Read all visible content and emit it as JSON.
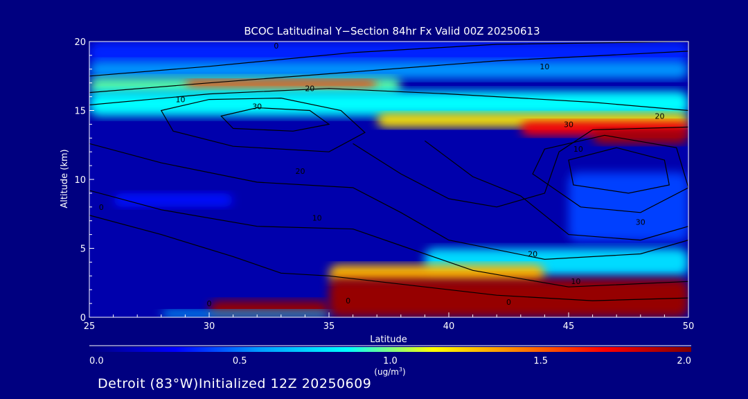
{
  "chart_data": {
    "type": "heatmap",
    "title": "BCOC Latitudinal Y−Section 84hr  Fx Valid 00Z 20250613",
    "xlabel": "Latitude",
    "ylabel": "Altitude (km)",
    "xlim": [
      25,
      50
    ],
    "ylim": [
      0,
      20
    ],
    "x_ticks": [
      25,
      30,
      35,
      40,
      45,
      50
    ],
    "y_ticks": [
      0,
      5,
      10,
      15,
      20
    ],
    "colorbar": {
      "min": 0.0,
      "max": 2.0,
      "tick_values": [
        0.0,
        0.5,
        1.0,
        1.5,
        2.0
      ],
      "tick_labels": [
        "0.0",
        "0.5",
        "1.0",
        "1.5",
        "2.0"
      ],
      "unit": "(ug/m",
      "unit_sup": "3",
      "unit_close": ")",
      "colormap": [
        "#000080",
        "#0000ff",
        "#00a0ff",
        "#00ffff",
        "#ffff00",
        "#ff8000",
        "#ff0000",
        "#800000"
      ]
    },
    "concentration_regions": [
      {
        "x": [
          25,
          50
        ],
        "y": [
          0,
          20
        ],
        "value": 0.1
      },
      {
        "x": [
          25,
          50
        ],
        "y": [
          18.3,
          20
        ],
        "value": 0.35
      },
      {
        "x": [
          25,
          50
        ],
        "y": [
          17.3,
          18.6
        ],
        "value": 0.55
      },
      {
        "x": [
          25,
          38
        ],
        "y": [
          16.2,
          17.4
        ],
        "value": 0.95
      },
      {
        "x": [
          29,
          37
        ],
        "y": [
          16.6,
          17.2
        ],
        "value": 1.6
      },
      {
        "x": [
          25,
          50
        ],
        "y": [
          14.6,
          16.4
        ],
        "value": 0.85
      },
      {
        "x": [
          37,
          50
        ],
        "y": [
          13.8,
          14.8
        ],
        "value": 1.2
      },
      {
        "x": [
          43,
          50
        ],
        "y": [
          13.2,
          14.2
        ],
        "value": 1.7
      },
      {
        "x": [
          46,
          50
        ],
        "y": [
          12.6,
          13.6
        ],
        "value": 1.9
      },
      {
        "x": [
          26,
          31
        ],
        "y": [
          8.0,
          9.0
        ],
        "value": 0.3
      },
      {
        "x": [
          45,
          50
        ],
        "y": [
          5.5,
          10.5
        ],
        "value": 0.4
      },
      {
        "x": [
          39,
          50
        ],
        "y": [
          3.0,
          5.0
        ],
        "value": 0.75
      },
      {
        "x": [
          35,
          44
        ],
        "y": [
          2.5,
          3.8
        ],
        "value": 1.3
      },
      {
        "x": [
          35,
          50
        ],
        "y": [
          0,
          2.8
        ],
        "value": 1.95
      },
      {
        "x": [
          30,
          35
        ],
        "y": [
          0,
          1.2
        ],
        "value": 1.95
      },
      {
        "x": [
          28,
          35
        ],
        "y": [
          0,
          0.5
        ],
        "value": 0.6
      }
    ],
    "contour_labels": [
      {
        "text": "0",
        "x": 32.8,
        "y": 19.5
      },
      {
        "text": "10",
        "x": 44.0,
        "y": 18.0
      },
      {
        "text": "10",
        "x": 28.8,
        "y": 15.6
      },
      {
        "text": "20",
        "x": 34.2,
        "y": 16.4
      },
      {
        "text": "30",
        "x": 32.0,
        "y": 15.1
      },
      {
        "text": "30",
        "x": 45.0,
        "y": 13.8
      },
      {
        "text": "20",
        "x": 48.8,
        "y": 14.4
      },
      {
        "text": "10",
        "x": 45.4,
        "y": 12.0
      },
      {
        "text": "20",
        "x": 33.8,
        "y": 10.4
      },
      {
        "text": "10",
        "x": 34.5,
        "y": 7.0
      },
      {
        "text": "0",
        "x": 25.5,
        "y": 7.8
      },
      {
        "text": "30",
        "x": 48.0,
        "y": 6.7
      },
      {
        "text": "20",
        "x": 43.5,
        "y": 4.4
      },
      {
        "text": "10",
        "x": 45.3,
        "y": 2.4
      },
      {
        "text": "0",
        "x": 42.5,
        "y": 0.9
      },
      {
        "text": "0",
        "x": 35.8,
        "y": 1.0
      },
      {
        "text": "0",
        "x": 30.0,
        "y": 0.8
      }
    ]
  },
  "footer_text": "Detroit (83°W)Initialized 12Z 20250609"
}
